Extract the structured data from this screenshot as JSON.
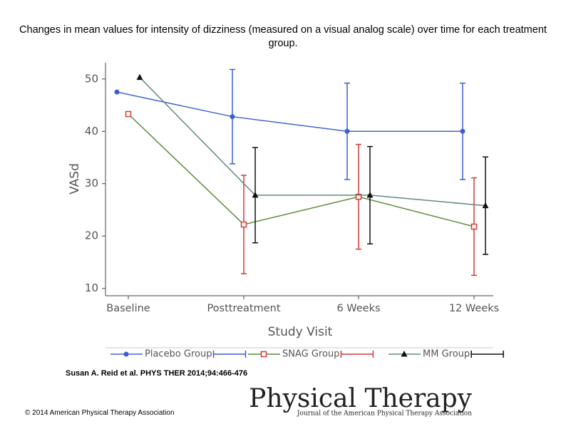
{
  "chart_data": {
    "type": "line",
    "title": "Changes in mean values for intensity of dizziness (measured on a visual analog scale) over time for each treatment group.",
    "y_label": "VASd",
    "x_label": "Study Visit",
    "categories": [
      "Baseline",
      "Posttreatment",
      "6 Weeks",
      "12 Weeks"
    ],
    "ylim": [
      8.6,
      53.1
    ],
    "yticks": [
      10,
      20,
      30,
      40,
      50
    ],
    "series": [
      {
        "name": "Placebo Group",
        "color": "#3b5fd0",
        "line_color": "#4466cc",
        "marker": "circle",
        "values": [
          47.5,
          42.8,
          40,
          40
        ],
        "errors": [
          null,
          9,
          9.2,
          9.2
        ]
      },
      {
        "name": "SNAG Group",
        "color": "#d43a3a",
        "line_color": "#5e8a3c",
        "marker": "square",
        "values": [
          43.3,
          22.2,
          27.5,
          21.8
        ],
        "errors": [
          null,
          9.4,
          10,
          9.3
        ]
      },
      {
        "name": "MM Group",
        "color": "#111111",
        "line_color": "#5f8a87",
        "marker": "triangle",
        "values": [
          50.3,
          27.8,
          27.8,
          25.8
        ],
        "errors": [
          null,
          9.1,
          9.3,
          9.3
        ]
      }
    ]
  },
  "citation": "Susan A. Reid et al. PHYS THER 2014;94:466-476",
  "copyright": "© 2014 American Physical Therapy Association",
  "logo": {
    "title": "Physical Therapy",
    "subtitle": "Journal of the American Physical Therapy Association"
  }
}
